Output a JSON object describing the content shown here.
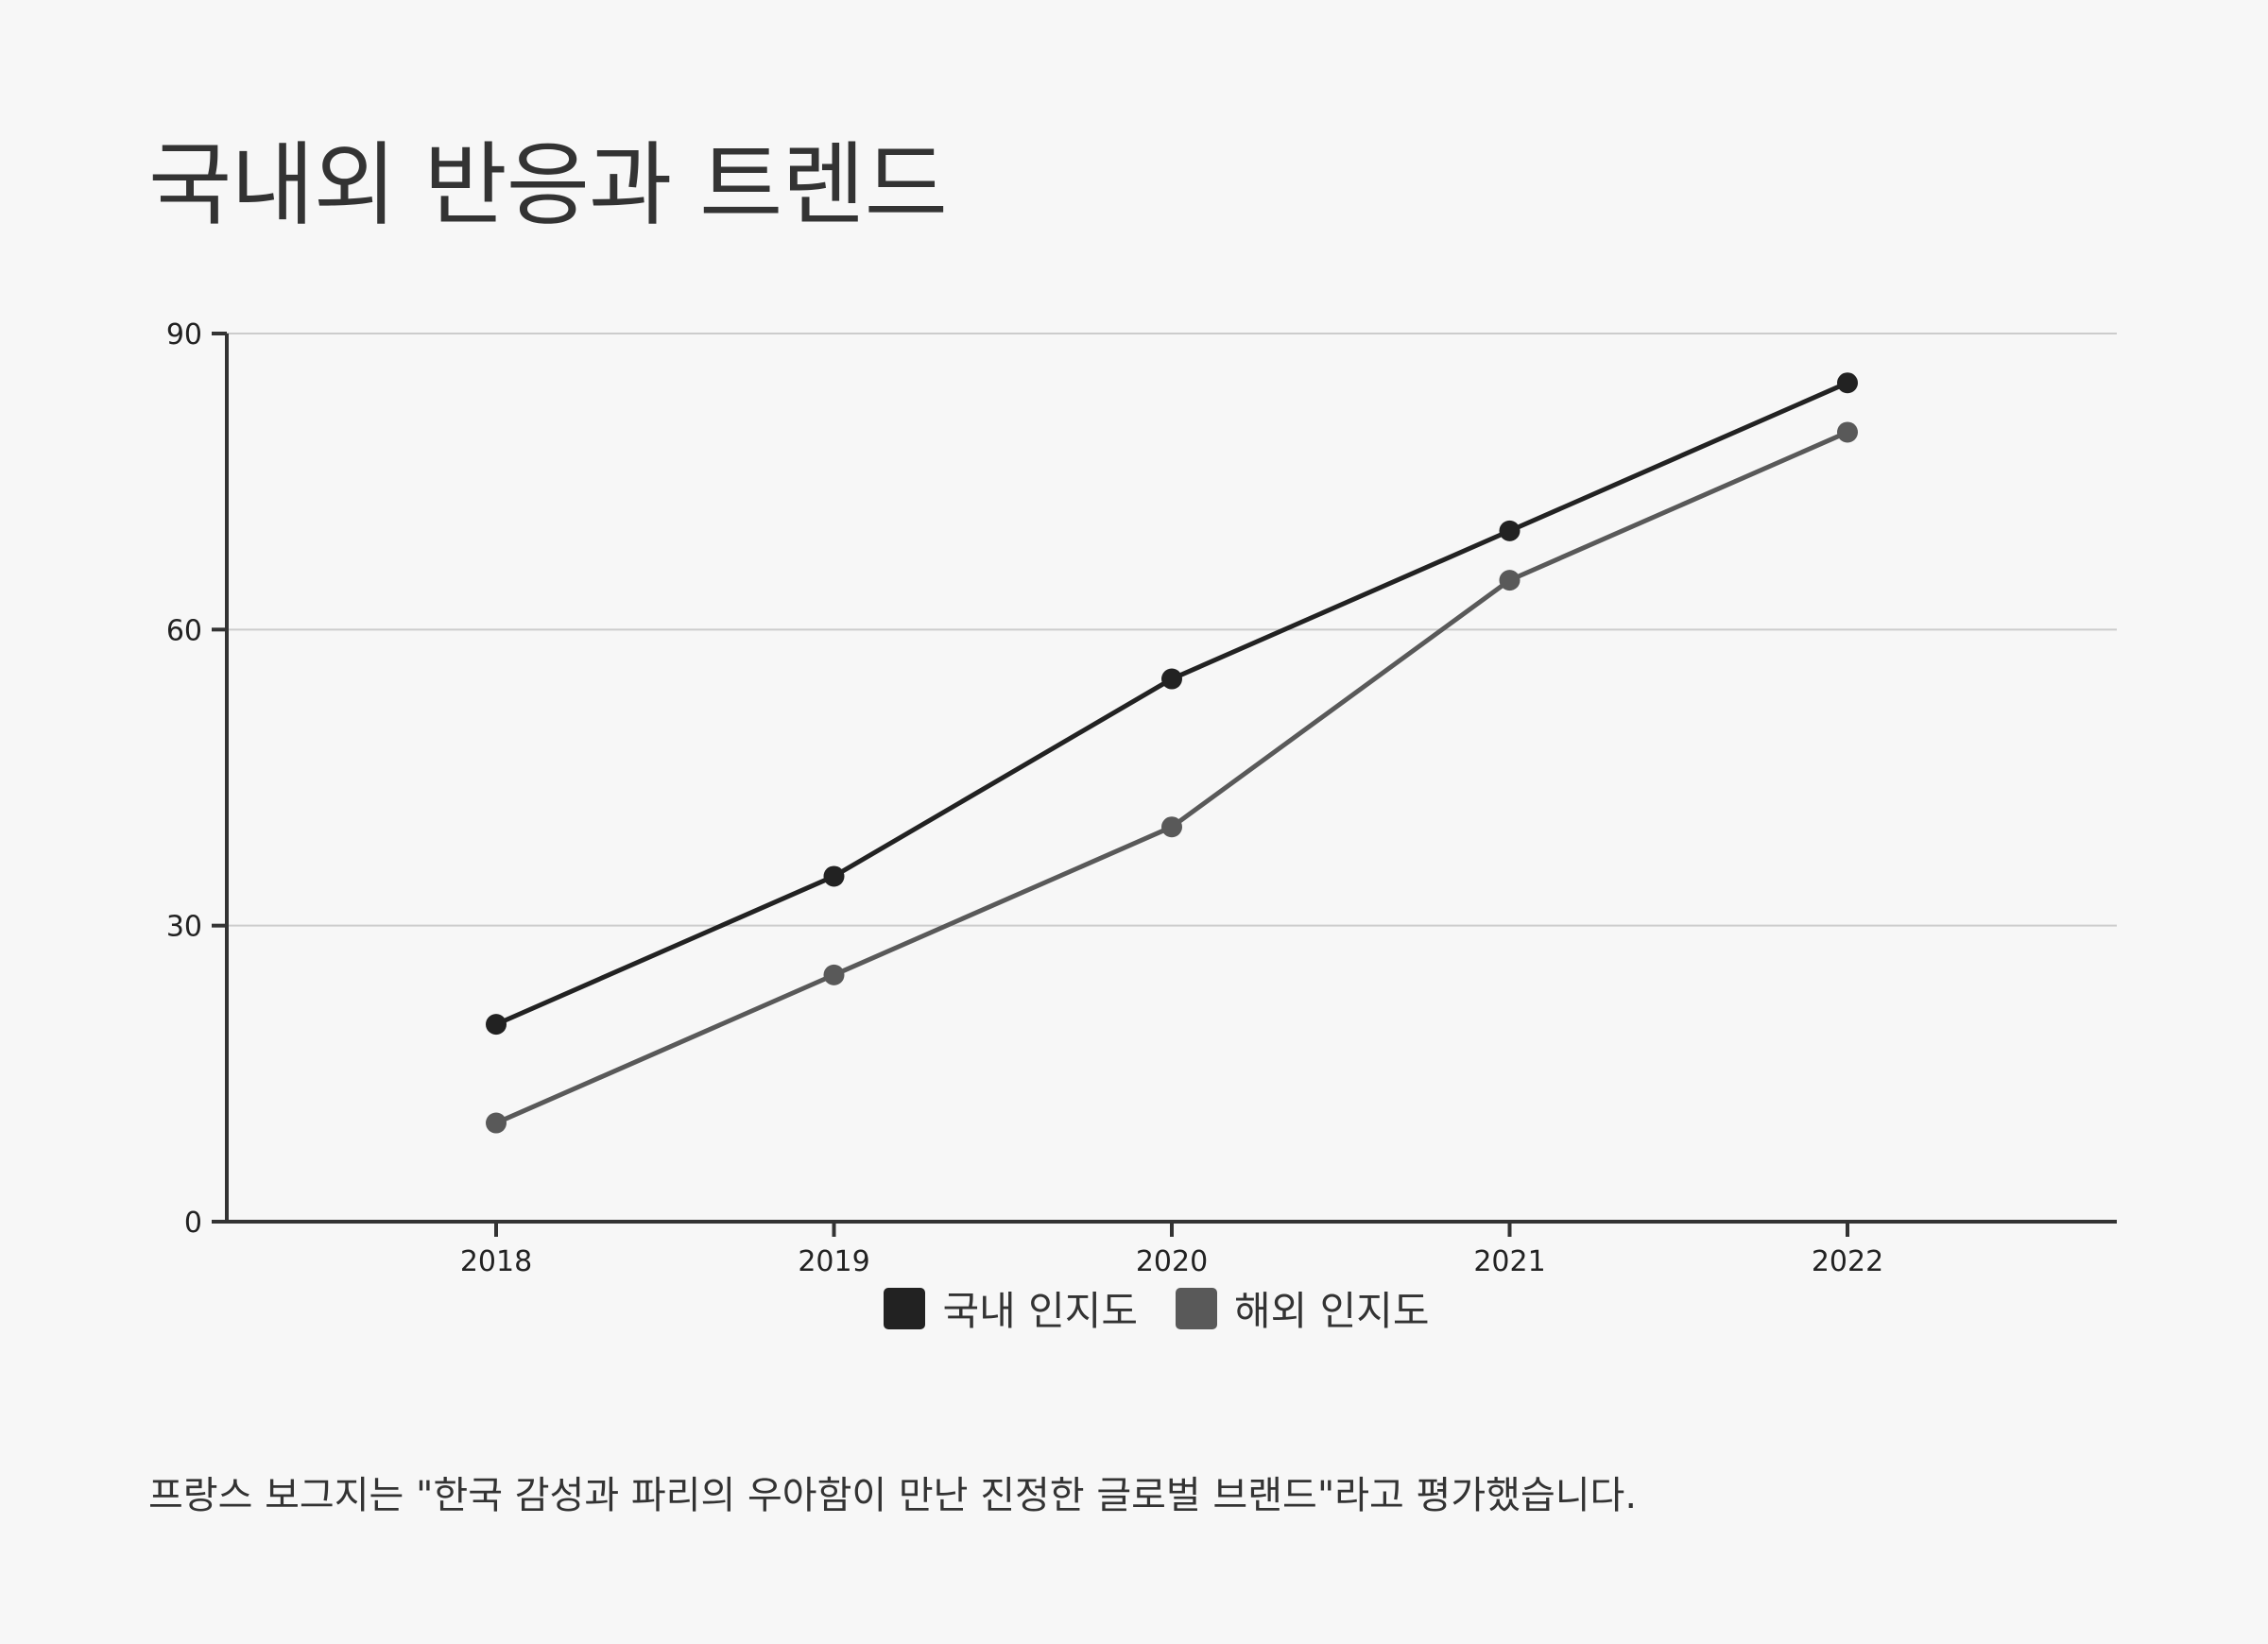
{
  "title": "국내외 반응과 트렌드",
  "caption": "프랑스 보그지는 \"한국 감성과 파리의 우아함이 만난 진정한 글로벌 브랜드\"라고 평가했습니다.",
  "chart_data": {
    "type": "line",
    "title": "",
    "xlabel": "",
    "ylabel": "",
    "categories": [
      "2018",
      "2019",
      "2020",
      "2021",
      "2022"
    ],
    "series": [
      {
        "name": "국내 인지도",
        "values": [
          20,
          35,
          55,
          70,
          85
        ],
        "color": "#222222"
      },
      {
        "name": "해외 인지도",
        "values": [
          10,
          25,
          40,
          65,
          80
        ],
        "color": "#595959"
      }
    ],
    "ylim": [
      0,
      90
    ],
    "yticks": [
      "0",
      "30",
      "60",
      "90"
    ],
    "grid": true,
    "legend": "bottom-center"
  }
}
